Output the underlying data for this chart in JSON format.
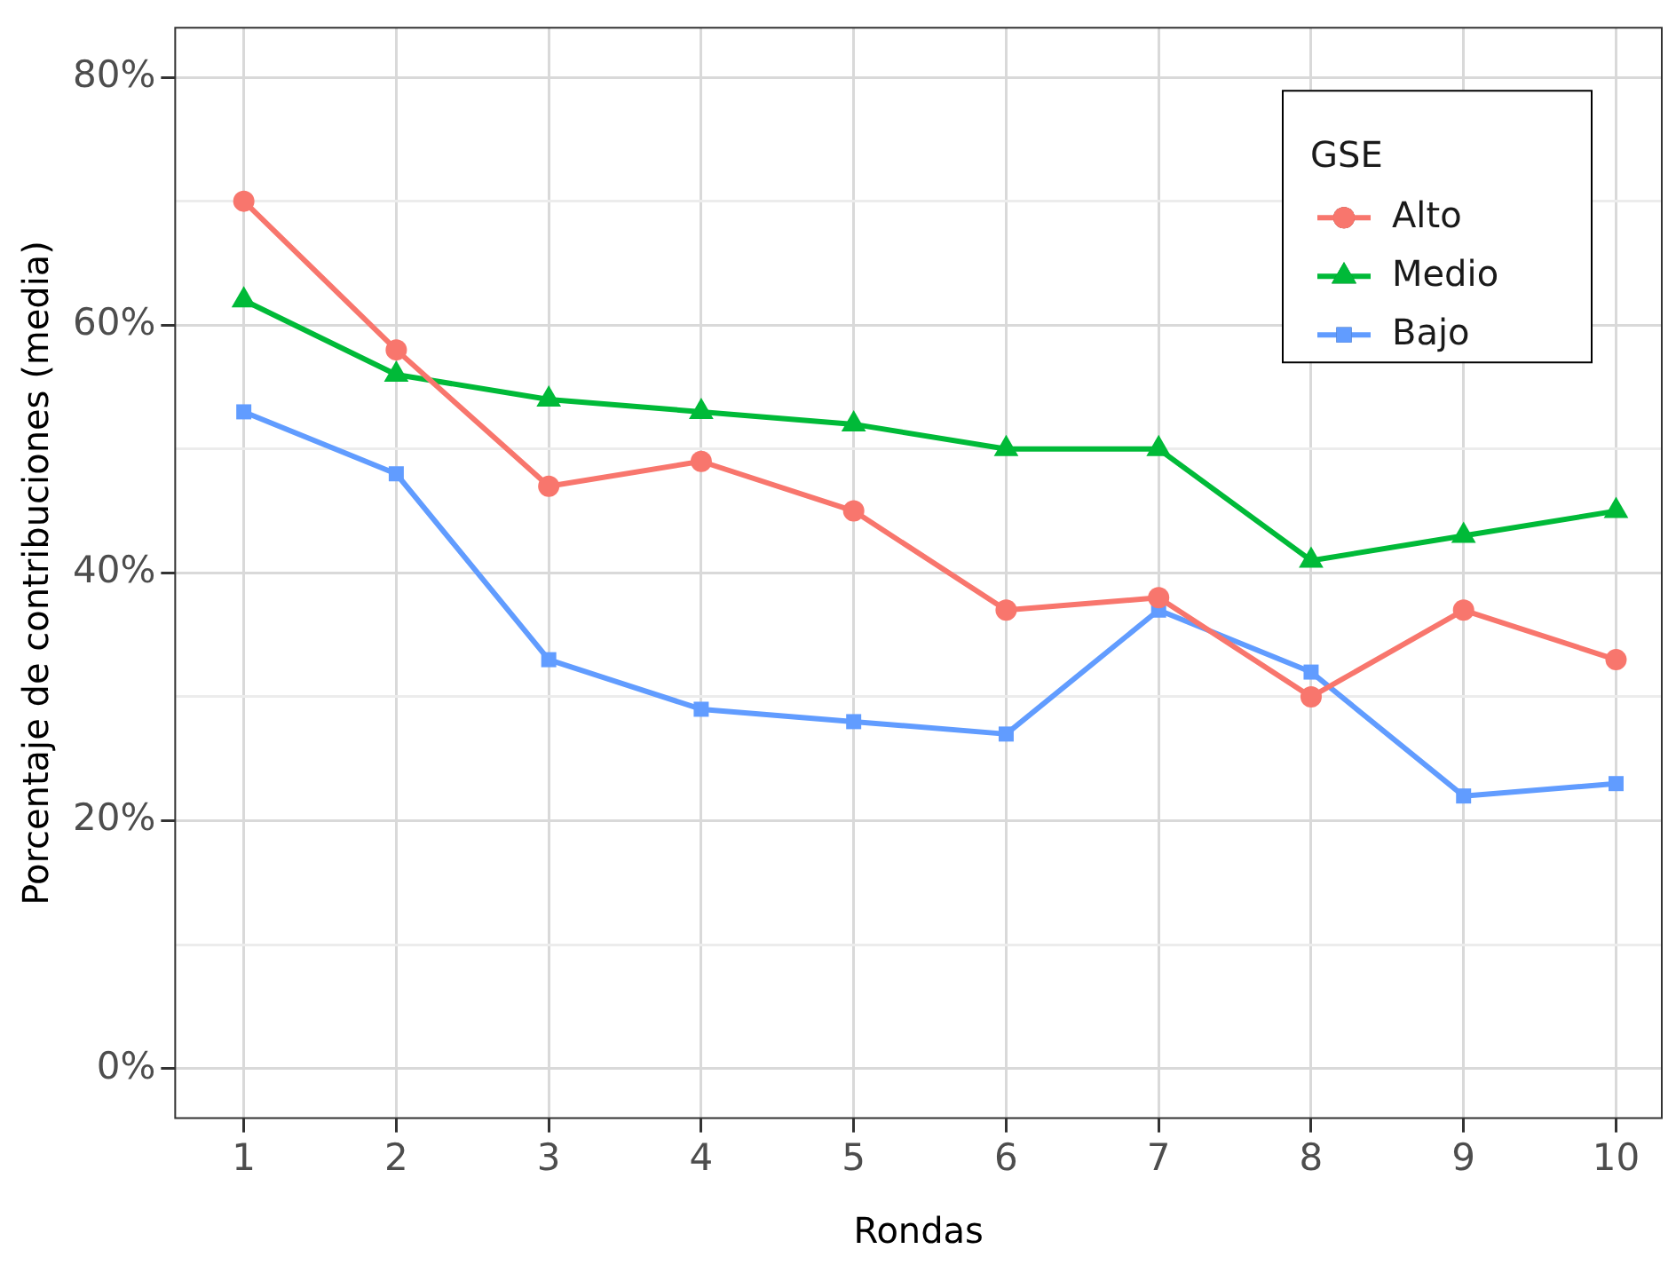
{
  "chart_data": {
    "type": "line",
    "xlabel": "Rondas",
    "ylabel": "Porcentaje de contribuciones (media)",
    "legend_title": "GSE",
    "legend": "top right",
    "grid": true,
    "line_style": "solid",
    "x": [
      1,
      2,
      3,
      4,
      5,
      6,
      7,
      8,
      9,
      10
    ],
    "xlim": [
      0.55,
      10.3
    ],
    "xticks": [
      1,
      2,
      3,
      4,
      5,
      6,
      7,
      8,
      9,
      10
    ],
    "ylim": [
      -4,
      84
    ],
    "yticks": [
      {
        "value": 0,
        "label": "0%"
      },
      {
        "value": 10,
        "label": null
      },
      {
        "value": 20,
        "label": "20%"
      },
      {
        "value": 30,
        "label": null
      },
      {
        "value": 40,
        "label": "40%"
      },
      {
        "value": 50,
        "label": null
      },
      {
        "value": 60,
        "label": "60%"
      },
      {
        "value": 70,
        "label": null
      },
      {
        "value": 80,
        "label": "80%"
      }
    ],
    "series": [
      {
        "name": "Alto",
        "color": "#f8766d",
        "marker": "circle",
        "values": [
          70,
          58,
          47,
          49,
          45,
          37,
          38,
          30,
          37,
          33
        ]
      },
      {
        "name": "Medio",
        "color": "#00ba38",
        "marker": "triangle",
        "values": [
          62,
          56,
          54,
          53,
          52,
          50,
          50,
          41,
          43,
          45
        ]
      },
      {
        "name": "Bajo",
        "color": "#619cff",
        "marker": "square",
        "values": [
          53,
          48,
          33,
          29,
          28,
          27,
          37,
          32,
          22,
          23
        ]
      }
    ]
  }
}
